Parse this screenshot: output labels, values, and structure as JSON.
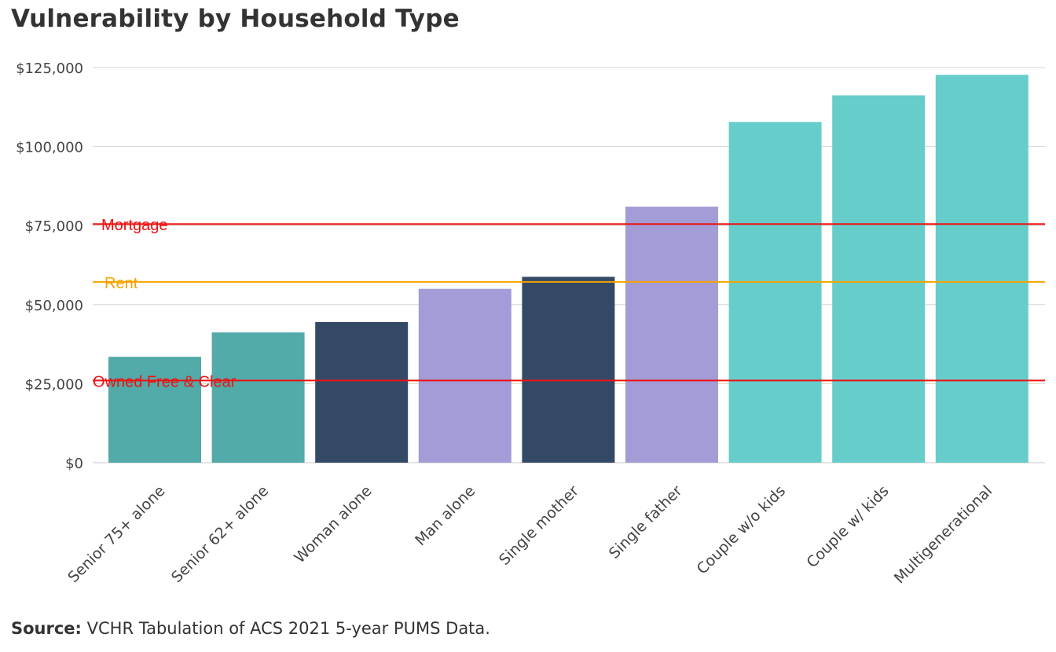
{
  "title": "Vulnerability by Household Type",
  "source": {
    "label": "Source:",
    "text": "VCHR Tabulation of ACS 2021 5-year PUMS Data."
  },
  "chart_data": {
    "type": "bar",
    "title": "Vulnerability by Household Type",
    "xlabel": "",
    "ylabel": "",
    "ylim": [
      0,
      125000
    ],
    "y_ticks": [
      0,
      25000,
      50000,
      75000,
      100000,
      125000
    ],
    "y_tick_labels": [
      "$0",
      "$25,000",
      "$50,000",
      "$75,000",
      "$100,000",
      "$125,000"
    ],
    "grid": true,
    "categories": [
      "Senior 75+ alone",
      "Senior 62+ alone",
      "Woman alone",
      "Man alone",
      "Single mother",
      "Single father",
      "Couple w/o kids",
      "Couple  w/ kids",
      "Multigenerational"
    ],
    "values": [
      33500,
      41200,
      44500,
      55000,
      58800,
      81000,
      107800,
      116200,
      122700
    ],
    "colors": [
      "#52aaa9",
      "#52aaa9",
      "#344966",
      "#a39cd6",
      "#344966",
      "#a39cd6",
      "#67cdca",
      "#67cdca",
      "#67cdca"
    ],
    "reference_lines": [
      {
        "label": "Mortgage",
        "value": 75500,
        "color": "#ee1111"
      },
      {
        "label": "Rent",
        "value": 57200,
        "color": "#f5a300"
      },
      {
        "label": "Owned Free & Clear",
        "value": 26000,
        "color": "#ee1111"
      }
    ]
  }
}
